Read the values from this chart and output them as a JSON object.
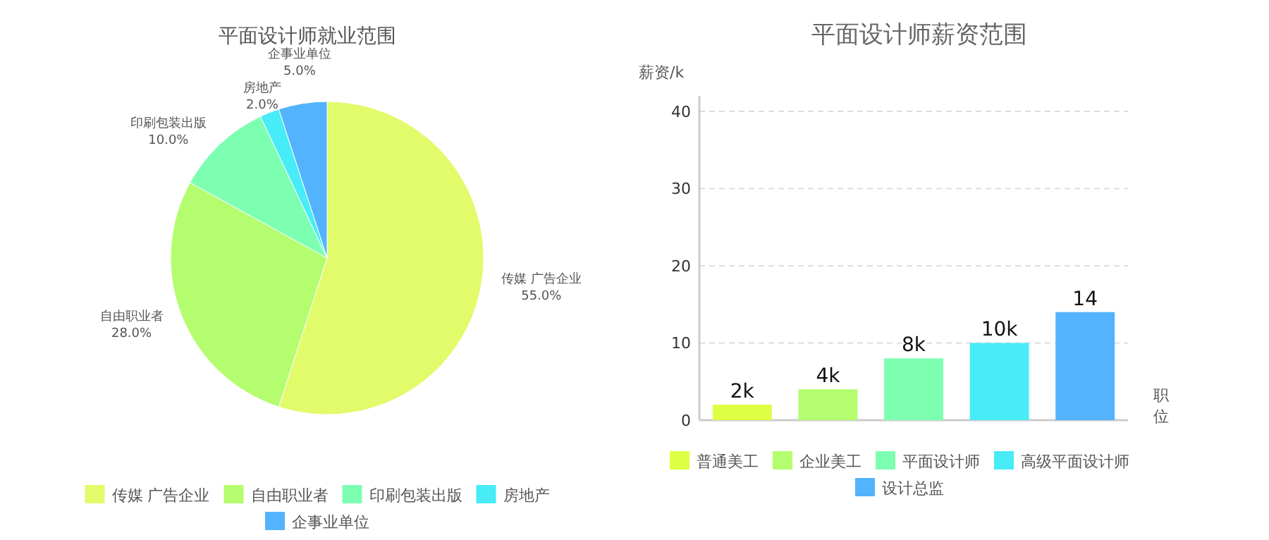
{
  "chart_data": [
    {
      "type": "pie",
      "title": "平面设计师就业范围",
      "categories": [
        "传媒 广告企业",
        "自由职业者",
        "印刷包装出版",
        "房地产",
        "企事业单位"
      ],
      "values": [
        55,
        28,
        10,
        2,
        5
      ],
      "colors": [
        "#e2fb6a",
        "#b3fd6e",
        "#7dffb2",
        "#47ecf7",
        "#53b3fc"
      ],
      "value_labels": [
        "55.0%",
        "28.0%",
        "10.0%",
        "2.0%",
        "5.0%"
      ],
      "legend": "bottom"
    },
    {
      "type": "bar",
      "title": "平面设计师薪资范围",
      "xlabel": "职位",
      "ylabel": "薪资/k",
      "categories": [
        null
      ],
      "series": [
        {
          "name": "普通美工",
          "color": "#ddff44",
          "values": [
            2
          ],
          "value_labels": [
            "2k"
          ]
        },
        {
          "name": "企业美工",
          "color": "#b3fd6e",
          "values": [
            4
          ],
          "value_labels": [
            "4k"
          ]
        },
        {
          "name": "平面设计师",
          "color": "#7dffb2",
          "values": [
            8
          ],
          "value_labels": [
            "8k"
          ]
        },
        {
          "name": "高级平面设计师",
          "color": "#47ecf7",
          "values": [
            10
          ],
          "value_labels": [
            "10k"
          ]
        },
        {
          "name": "设计总监",
          "color": "#53b3fc",
          "values": [
            14
          ],
          "value_labels": [
            "14"
          ]
        }
      ],
      "ylim": [
        0,
        42
      ],
      "yticks": [
        0,
        10,
        20,
        30,
        40
      ],
      "grid": "y",
      "legend": "bottom",
      "tick_labels": "y"
    }
  ]
}
